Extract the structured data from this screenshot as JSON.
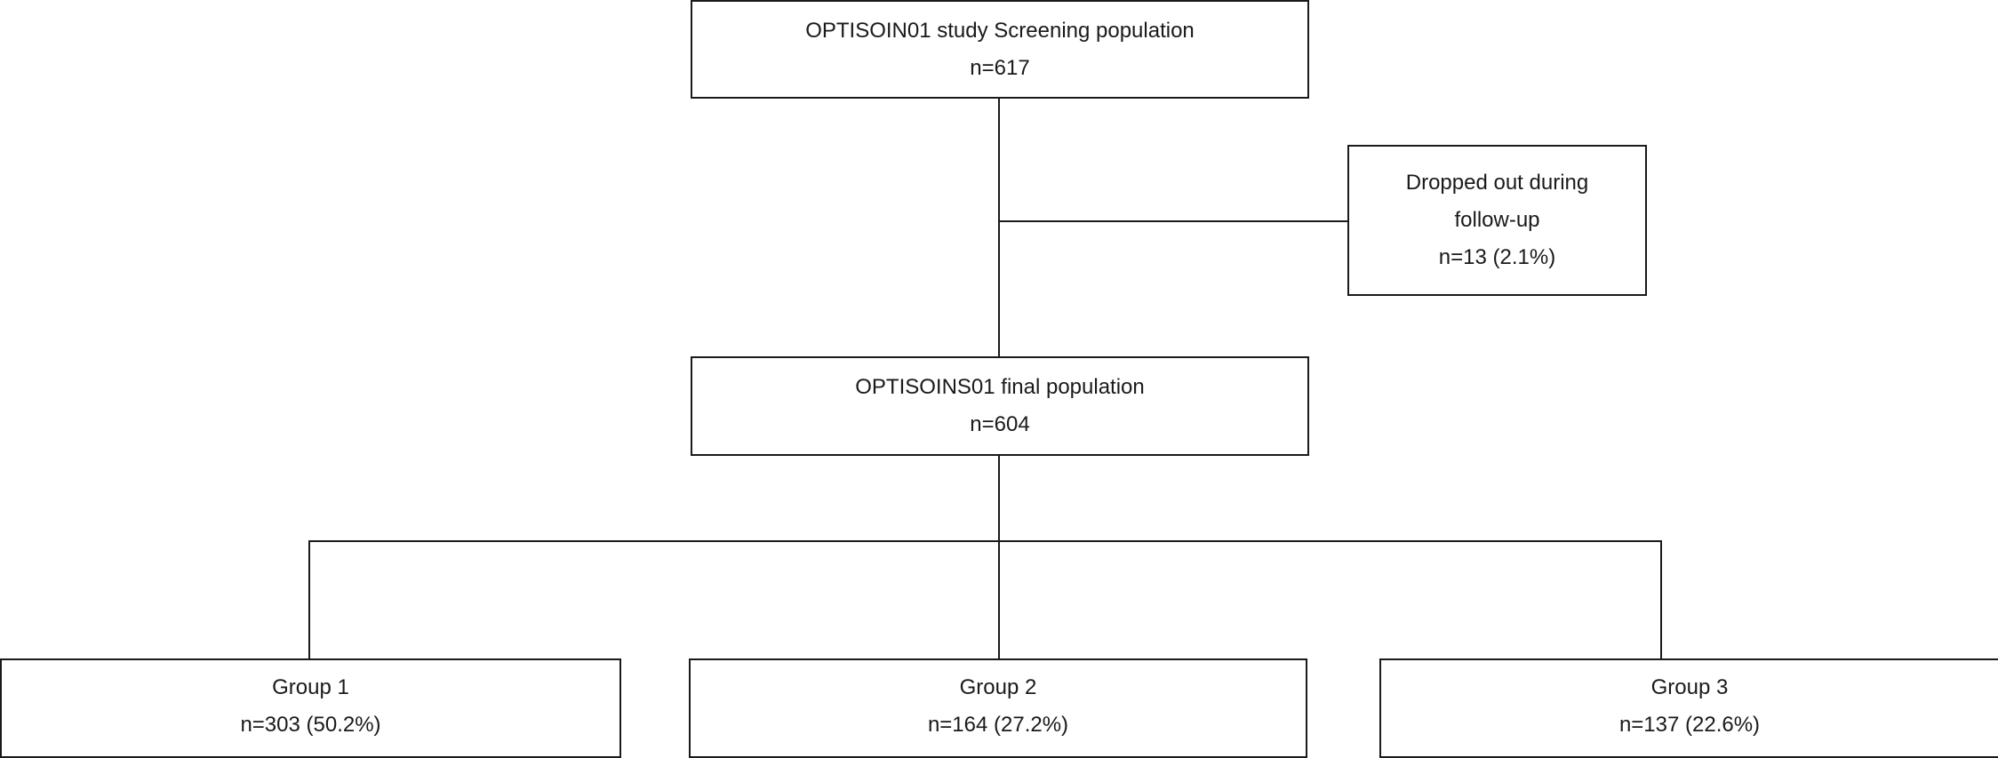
{
  "flowchart": {
    "screening": {
      "title": "OPTISOIN01 study Screening population",
      "count": "n=617"
    },
    "dropout": {
      "line1": "Dropped out during",
      "line2": "follow-up",
      "count": "n=13 (2.1%)"
    },
    "final": {
      "title": "OPTISOINS01 final population",
      "count": "n=604"
    },
    "groups": [
      {
        "label": "Group 1",
        "count": "n=303 (50.2%)"
      },
      {
        "label": "Group 2",
        "count": "n=164 (27.2%)"
      },
      {
        "label": "Group 3",
        "count": "n=137 (22.6%)"
      }
    ]
  }
}
